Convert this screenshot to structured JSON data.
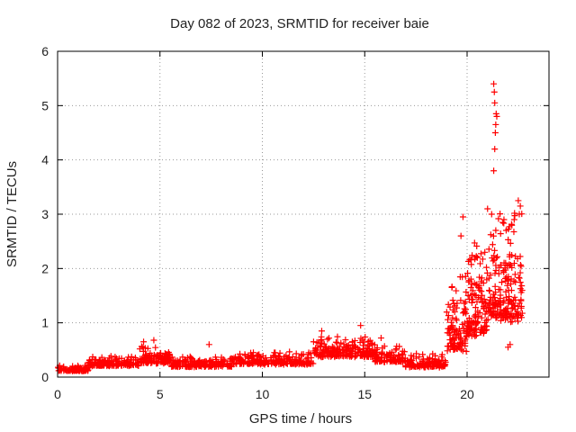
{
  "chart_data": {
    "type": "scatter",
    "title": "Day 082 of 2023, SRMTID for receiver baie",
    "xlabel": "GPS time / hours",
    "ylabel": "SRMTID / TECUs",
    "xlim": [
      0,
      24
    ],
    "ylim": [
      0,
      6
    ],
    "grid": true,
    "x_ticks": [
      0,
      5,
      10,
      15,
      20
    ],
    "x_tick_labels": [
      "0",
      "5",
      "10",
      "15",
      "20"
    ],
    "y_ticks": [
      0,
      1,
      2,
      3,
      4,
      5,
      6
    ],
    "y_tick_labels": [
      "0",
      "1",
      "2",
      "3",
      "4",
      "5",
      "6"
    ],
    "marker": "+",
    "marker_color": "#ff0000",
    "series": [
      {
        "name": "SRMTID",
        "segments": [
          {
            "x0": 0.0,
            "x1": 1.5,
            "base": 0.12,
            "spread": 0.1,
            "count": 90
          },
          {
            "x0": 1.5,
            "x1": 4.0,
            "base": 0.22,
            "spread": 0.18,
            "count": 150
          },
          {
            "x0": 4.0,
            "x1": 5.5,
            "base": 0.28,
            "spread": 0.3,
            "count": 110
          },
          {
            "x0": 5.5,
            "x1": 8.5,
            "base": 0.2,
            "spread": 0.18,
            "count": 170
          },
          {
            "x0": 8.5,
            "x1": 12.5,
            "base": 0.25,
            "spread": 0.22,
            "count": 220
          },
          {
            "x0": 12.5,
            "x1": 15.5,
            "base": 0.4,
            "spread": 0.35,
            "count": 200
          },
          {
            "x0": 15.5,
            "x1": 17.0,
            "base": 0.3,
            "spread": 0.3,
            "count": 90
          },
          {
            "x0": 17.0,
            "x1": 19.0,
            "base": 0.2,
            "spread": 0.25,
            "count": 120
          },
          {
            "x0": 19.0,
            "x1": 20.0,
            "base": 0.6,
            "spread": 1.4,
            "count": 110
          },
          {
            "x0": 20.0,
            "x1": 21.0,
            "base": 0.9,
            "spread": 1.6,
            "count": 120
          },
          {
            "x0": 21.0,
            "x1": 22.7,
            "base": 1.2,
            "spread": 2.0,
            "count": 200
          }
        ],
        "spikes": [
          {
            "x": 4.2,
            "y": 0.65
          },
          {
            "x": 4.7,
            "y": 0.68
          },
          {
            "x": 7.4,
            "y": 0.6
          },
          {
            "x": 12.9,
            "y": 0.85
          },
          {
            "x": 14.8,
            "y": 0.95
          },
          {
            "x": 15.8,
            "y": 0.72
          },
          {
            "x": 19.8,
            "y": 2.95
          },
          {
            "x": 19.7,
            "y": 2.6
          },
          {
            "x": 20.5,
            "y": 2.2
          },
          {
            "x": 21.0,
            "y": 3.1
          },
          {
            "x": 21.2,
            "y": 3.0
          },
          {
            "x": 21.3,
            "y": 3.8
          },
          {
            "x": 21.35,
            "y": 4.2
          },
          {
            "x": 21.38,
            "y": 4.5
          },
          {
            "x": 21.4,
            "y": 4.65
          },
          {
            "x": 21.42,
            "y": 4.85
          },
          {
            "x": 21.35,
            "y": 5.05
          },
          {
            "x": 21.33,
            "y": 5.25
          },
          {
            "x": 21.3,
            "y": 5.4
          },
          {
            "x": 21.45,
            "y": 4.8
          },
          {
            "x": 22.5,
            "y": 3.25
          },
          {
            "x": 22.6,
            "y": 3.15
          },
          {
            "x": 22.55,
            "y": 3.0
          },
          {
            "x": 22.3,
            "y": 2.9
          },
          {
            "x": 21.8,
            "y": 2.9
          },
          {
            "x": 22.0,
            "y": 0.55
          },
          {
            "x": 22.1,
            "y": 0.6
          }
        ]
      }
    ]
  }
}
